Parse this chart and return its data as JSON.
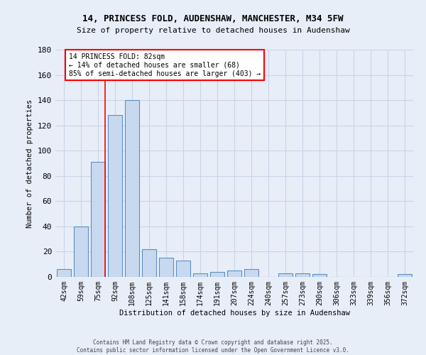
{
  "title_line1": "14, PRINCESS FOLD, AUDENSHAW, MANCHESTER, M34 5FW",
  "title_line2": "Size of property relative to detached houses in Audenshaw",
  "xlabel": "Distribution of detached houses by size in Audenshaw",
  "ylabel": "Number of detached properties",
  "categories": [
    "42sqm",
    "59sqm",
    "75sqm",
    "92sqm",
    "108sqm",
    "125sqm",
    "141sqm",
    "158sqm",
    "174sqm",
    "191sqm",
    "207sqm",
    "224sqm",
    "240sqm",
    "257sqm",
    "273sqm",
    "290sqm",
    "306sqm",
    "323sqm",
    "339sqm",
    "356sqm",
    "372sqm"
  ],
  "values": [
    6,
    40,
    91,
    128,
    140,
    22,
    15,
    13,
    3,
    4,
    5,
    6,
    0,
    3,
    3,
    2,
    0,
    0,
    0,
    0,
    2
  ],
  "bar_color": "#c8d9ef",
  "bar_edge_color": "#5a8fc5",
  "grid_color": "#c8d4e8",
  "background_color": "#e8eef8",
  "annotation_text": "14 PRINCESS FOLD: 82sqm\n← 14% of detached houses are smaller (68)\n85% of semi-detached houses are larger (403) →",
  "annotation_box_color": "white",
  "annotation_box_edge_color": "red",
  "ylim": [
    0,
    180
  ],
  "yticks": [
    0,
    20,
    40,
    60,
    80,
    100,
    120,
    140,
    160,
    180
  ],
  "footer_line1": "Contains HM Land Registry data © Crown copyright and database right 2025.",
  "footer_line2": "Contains public sector information licensed under the Open Government Licence v3.0."
}
